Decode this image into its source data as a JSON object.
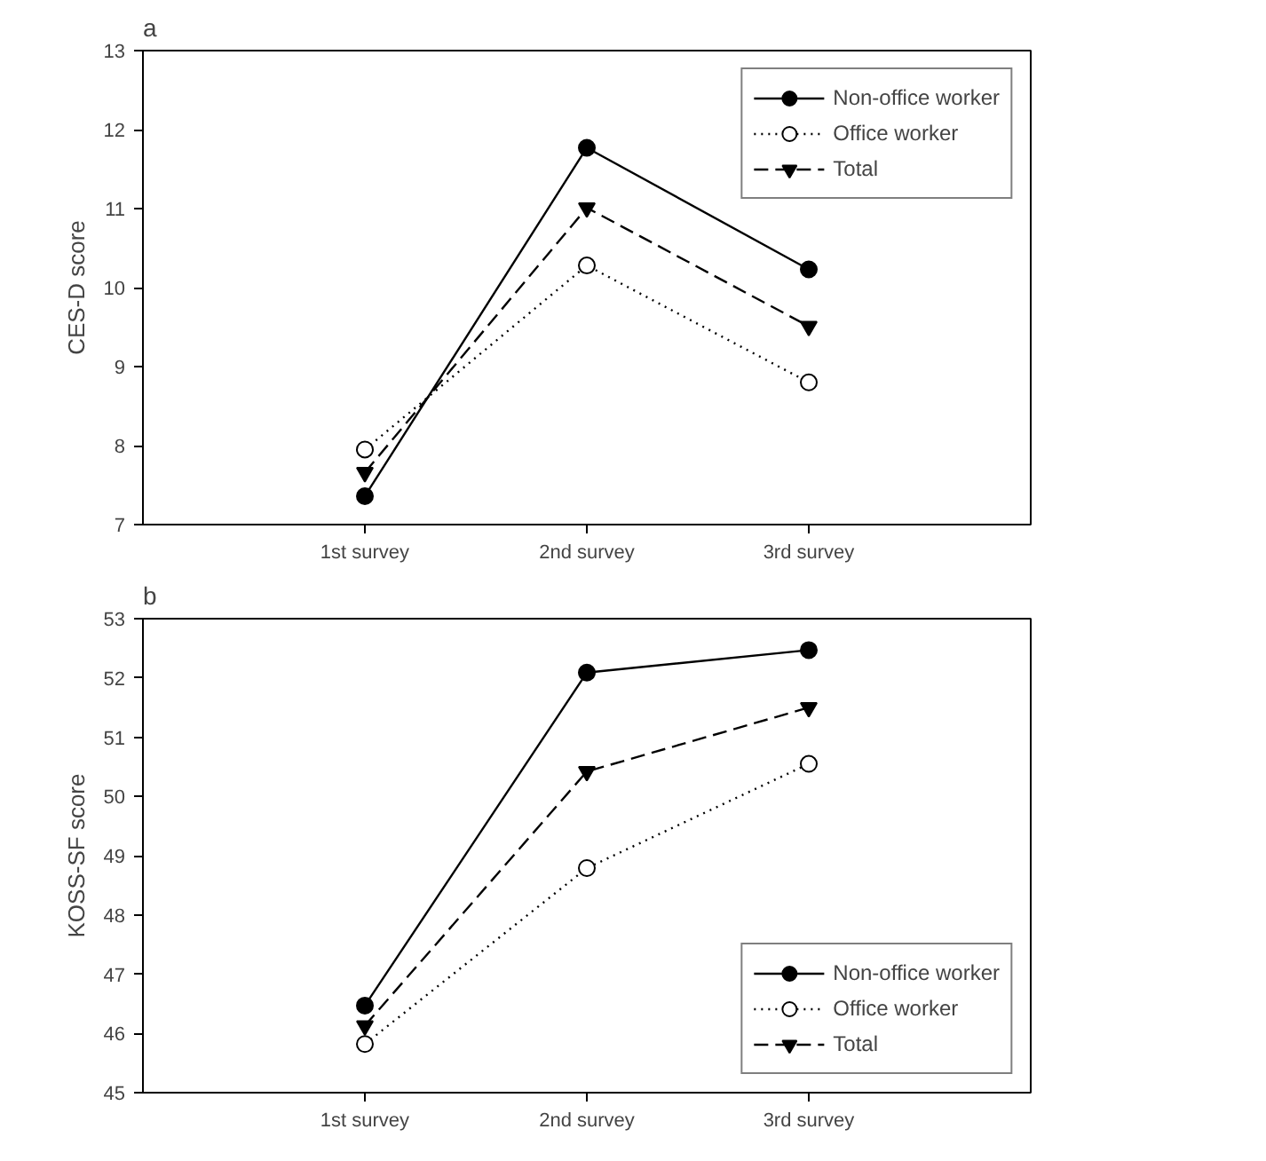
{
  "chart_data": [
    {
      "type": "line",
      "title": "a",
      "ylabel": "CES-D score",
      "categories": [
        "1st survey",
        "2nd survey",
        "3rd survey"
      ],
      "ylim": [
        7,
        13
      ],
      "yticks": [
        7,
        8,
        9,
        10,
        11,
        12,
        13
      ],
      "grid": false,
      "legend": "top right",
      "series": [
        {
          "name": "Non-office worker",
          "color": "#000000",
          "marker": "circle",
          "line_style": "solid",
          "values": [
            7.36,
            11.77,
            10.23
          ]
        },
        {
          "name": "Office worker",
          "color": "#000000",
          "marker": "circle_open",
          "line_style": "dotted",
          "values": [
            7.95,
            10.28,
            8.8
          ]
        },
        {
          "name": "Total",
          "color": "#000000",
          "marker": "triangle_down",
          "line_style": "dashed",
          "values": [
            7.66,
            11.01,
            9.51
          ]
        }
      ]
    },
    {
      "type": "line",
      "title": "b",
      "ylabel": "KOSS-SF score",
      "categories": [
        "1st survey",
        "2nd survey",
        "3rd survey"
      ],
      "ylim": [
        45,
        53
      ],
      "yticks": [
        45,
        46,
        47,
        48,
        49,
        50,
        51,
        52,
        53
      ],
      "grid": false,
      "legend": "bottom right",
      "series": [
        {
          "name": "Non-office worker",
          "color": "#000000",
          "marker": "circle",
          "line_style": "solid",
          "values": [
            46.47,
            52.09,
            52.47
          ]
        },
        {
          "name": "Office worker",
          "color": "#000000",
          "marker": "circle_open",
          "line_style": "dotted",
          "values": [
            45.82,
            48.79,
            50.55
          ]
        },
        {
          "name": "Total",
          "color": "#000000",
          "marker": "triangle_down",
          "line_style": "dashed",
          "values": [
            46.13,
            50.42,
            51.5
          ]
        }
      ]
    }
  ]
}
